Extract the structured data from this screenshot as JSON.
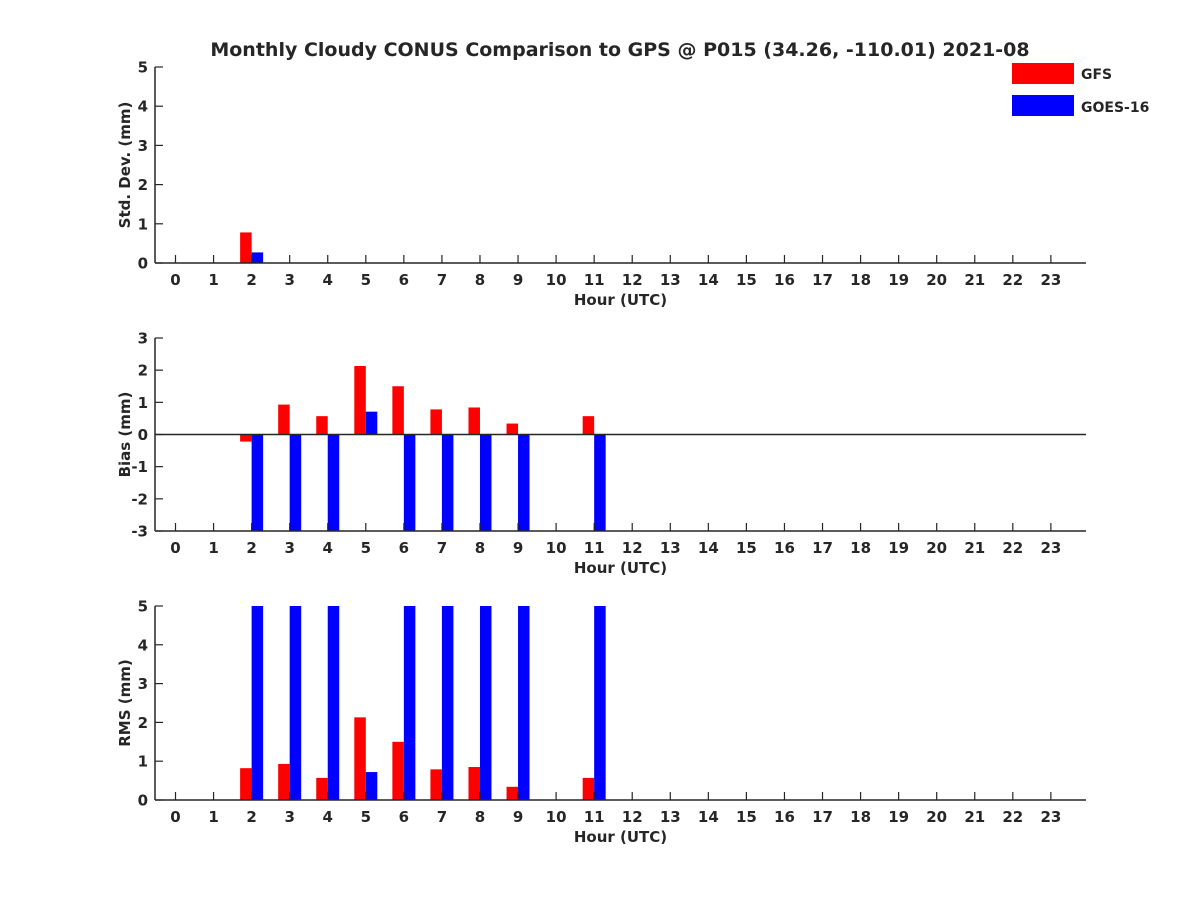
{
  "title": "Monthly Cloudy CONUS Comparison to GPS @ P015 (34.26, -110.01) 2021-08",
  "legend": {
    "placement": "top-right",
    "items": [
      {
        "label": "GFS",
        "color": "#ff0000"
      },
      {
        "label": "GOES-16",
        "color": "#0000ff"
      }
    ]
  },
  "colors": {
    "gfs": "#ff0000",
    "goes": "#0000ff",
    "axis": "#262626"
  },
  "chart_data": [
    {
      "type": "bar",
      "title": "Monthly Cloudy CONUS Comparison to GPS @ P015 (34.26, -110.01) 2021-08",
      "xlabel": "Hour (UTC)",
      "ylabel": "Std. Dev. (mm)",
      "ylim": [
        0,
        5
      ],
      "yticks": [
        0,
        1,
        2,
        3,
        4,
        5
      ],
      "zero_line": false,
      "categories": [
        "0",
        "1",
        "2",
        "3",
        "4",
        "5",
        "6",
        "7",
        "8",
        "9",
        "10",
        "11",
        "12",
        "13",
        "14",
        "15",
        "16",
        "17",
        "18",
        "19",
        "20",
        "21",
        "22",
        "23"
      ],
      "series": [
        {
          "name": "GFS",
          "color": "#ff0000",
          "values": [
            null,
            null,
            0.78,
            null,
            null,
            null,
            null,
            null,
            null,
            null,
            null,
            null,
            null,
            null,
            null,
            null,
            null,
            null,
            null,
            null,
            null,
            null,
            null,
            null
          ]
        },
        {
          "name": "GOES-16",
          "color": "#0000ff",
          "values": [
            null,
            null,
            0.27,
            null,
            null,
            null,
            null,
            null,
            null,
            null,
            null,
            null,
            null,
            null,
            null,
            null,
            null,
            null,
            null,
            null,
            null,
            null,
            null,
            null
          ]
        }
      ]
    },
    {
      "type": "bar",
      "xlabel": "Hour (UTC)",
      "ylabel": "Bias (mm)",
      "ylim": [
        -3,
        3
      ],
      "yticks": [
        -3,
        -2,
        -1,
        0,
        1,
        2,
        3
      ],
      "zero_line": true,
      "categories": [
        "0",
        "1",
        "2",
        "3",
        "4",
        "5",
        "6",
        "7",
        "8",
        "9",
        "10",
        "11",
        "12",
        "13",
        "14",
        "15",
        "16",
        "17",
        "18",
        "19",
        "20",
        "21",
        "22",
        "23"
      ],
      "series": [
        {
          "name": "GFS",
          "color": "#ff0000",
          "values": [
            null,
            null,
            -0.22,
            0.93,
            0.57,
            2.13,
            1.5,
            0.78,
            0.84,
            0.34,
            null,
            0.57,
            null,
            null,
            null,
            null,
            null,
            null,
            null,
            null,
            null,
            null,
            null,
            null
          ]
        },
        {
          "name": "GOES-16",
          "color": "#0000ff",
          "values": [
            null,
            null,
            -3.0,
            -3.0,
            -3.0,
            0.71,
            -3.0,
            -3.0,
            -3.0,
            -3.0,
            null,
            -3.0,
            null,
            null,
            null,
            null,
            null,
            null,
            null,
            null,
            null,
            null,
            null,
            null
          ]
        }
      ]
    },
    {
      "type": "bar",
      "xlabel": "Hour (UTC)",
      "ylabel": "RMS (mm)",
      "ylim": [
        0,
        5
      ],
      "yticks": [
        0,
        1,
        2,
        3,
        4,
        5
      ],
      "zero_line": false,
      "categories": [
        "0",
        "1",
        "2",
        "3",
        "4",
        "5",
        "6",
        "7",
        "8",
        "9",
        "10",
        "11",
        "12",
        "13",
        "14",
        "15",
        "16",
        "17",
        "18",
        "19",
        "20",
        "21",
        "22",
        "23"
      ],
      "series": [
        {
          "name": "GFS",
          "color": "#ff0000",
          "values": [
            null,
            null,
            0.82,
            0.93,
            0.57,
            2.13,
            1.5,
            0.79,
            0.85,
            0.34,
            null,
            0.57,
            null,
            null,
            null,
            null,
            null,
            null,
            null,
            null,
            null,
            null,
            null,
            null
          ]
        },
        {
          "name": "GOES-16",
          "color": "#0000ff",
          "values": [
            null,
            null,
            5.0,
            5.0,
            5.0,
            0.72,
            5.0,
            5.0,
            5.0,
            5.0,
            null,
            5.0,
            null,
            null,
            null,
            null,
            null,
            null,
            null,
            null,
            null,
            null,
            null,
            null
          ]
        }
      ]
    }
  ]
}
